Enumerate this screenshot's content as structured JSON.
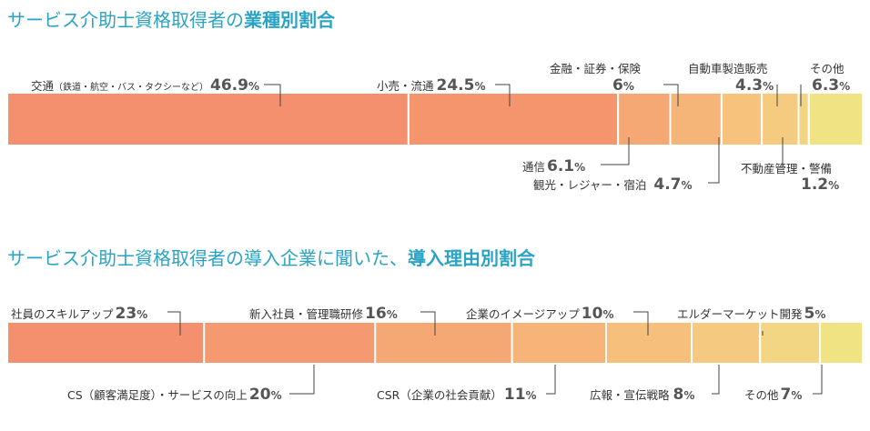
{
  "chart_data": [
    {
      "type": "bar",
      "orientation": "horizontal-stacked-100",
      "title_prefix": "サービス介助士資格取得者の",
      "title_emphasis": "業種別割合",
      "segments": [
        {
          "label": "交通",
          "sub": "（鉄道・航空・バス・タクシーなど）",
          "value": 46.9
        },
        {
          "label": "小売・流通",
          "value": 24.5
        },
        {
          "label": "通信",
          "value": 6.1
        },
        {
          "label": "金融・証券・保険",
          "value": 6.0
        },
        {
          "label": "観光・レジャー・宿泊",
          "value": 4.7
        },
        {
          "label": "自動車製造販売",
          "value": 4.3
        },
        {
          "label": "不動産管理・警備",
          "value": 1.2
        },
        {
          "label": "その他",
          "value": 6.3
        }
      ],
      "colors": [
        "#f4906e",
        "#f4956e",
        "#f5a874",
        "#f6b578",
        "#f6c27c",
        "#f5cb80",
        "#f3d483",
        "#f0e383"
      ]
    },
    {
      "type": "bar",
      "orientation": "horizontal-stacked-100",
      "title_prefix": "サービス介助士資格取得者の導入企業に聞いた、",
      "title_emphasis": "導入理由別割合",
      "segments": [
        {
          "label": "社員のスキルアップ",
          "value": 23
        },
        {
          "label": "CS（顧客満足度）・サービスの向上",
          "value": 20
        },
        {
          "label": "新入社員・管理職研修",
          "value": 16
        },
        {
          "label": "CSR（企業の社会貢献）",
          "value": 11
        },
        {
          "label": "企業のイメージアップ",
          "value": 10
        },
        {
          "label": "広報・宣伝戦略",
          "value": 8
        },
        {
          "label": "その他",
          "value": 7
        },
        {
          "label": "エルダーマーケット開発",
          "value": 5
        }
      ],
      "colors": [
        "#f4906e",
        "#f59a70",
        "#f6a874",
        "#f6b478",
        "#f6c07c",
        "#f5ca80",
        "#f3d683",
        "#f0e383"
      ]
    }
  ]
}
